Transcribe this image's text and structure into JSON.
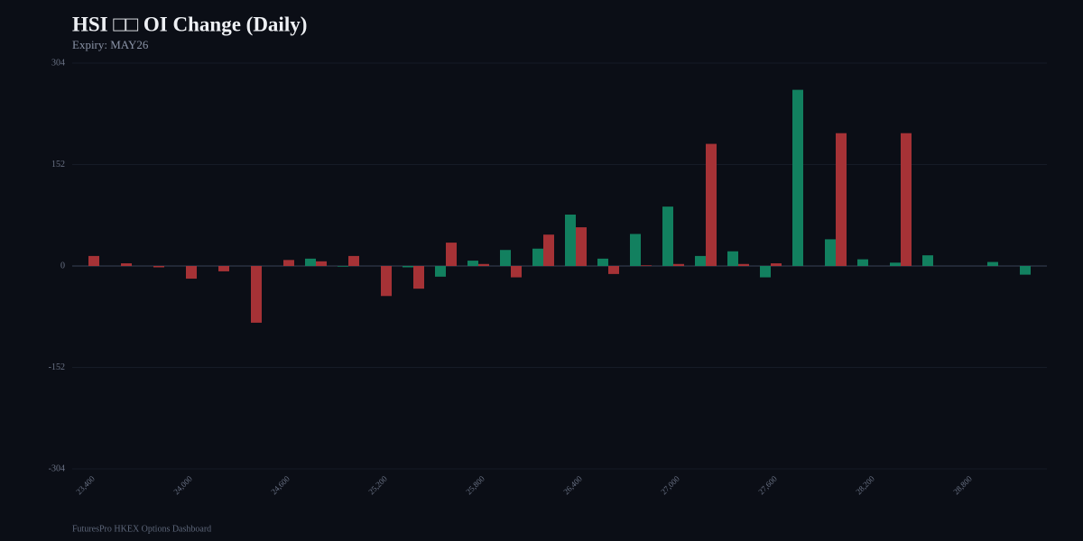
{
  "chart_data": {
    "type": "bar",
    "title": "HSI □□ OI Change (Daily)",
    "subtitle": "Expiry: MAY26",
    "footer": "FuturesPro HKEX Options Dashboard",
    "categories": [
      "23,400",
      null,
      null,
      "24,000",
      null,
      null,
      "24,600",
      null,
      null,
      "25,200",
      null,
      null,
      "25,800",
      null,
      null,
      "26,400",
      null,
      null,
      "27,000",
      null,
      null,
      "27,600",
      null,
      null,
      "28,200",
      null,
      null,
      "28,800",
      null,
      null
    ],
    "series": [
      {
        "color": "#12805f",
        "values": [
          0,
          0,
          0,
          0,
          0,
          0,
          0,
          11,
          -1,
          0,
          -2,
          -16,
          8,
          24,
          26,
          77,
          11,
          48,
          89,
          15,
          22,
          -17,
          264,
          40,
          10,
          5,
          16,
          0,
          6,
          -13
        ]
      },
      {
        "color": "#a63236",
        "values": [
          15,
          4,
          -2,
          -19,
          -8,
          -85,
          9,
          7,
          15,
          -45,
          -34,
          35,
          3,
          -17,
          47,
          58,
          -12,
          1,
          3,
          183,
          3,
          4,
          0,
          199,
          0,
          199,
          0,
          0,
          0,
          0
        ]
      }
    ],
    "ylim": [
      -304,
      304
    ],
    "yticks": [
      304,
      152,
      0,
      -152,
      -304
    ],
    "grid": true
  }
}
